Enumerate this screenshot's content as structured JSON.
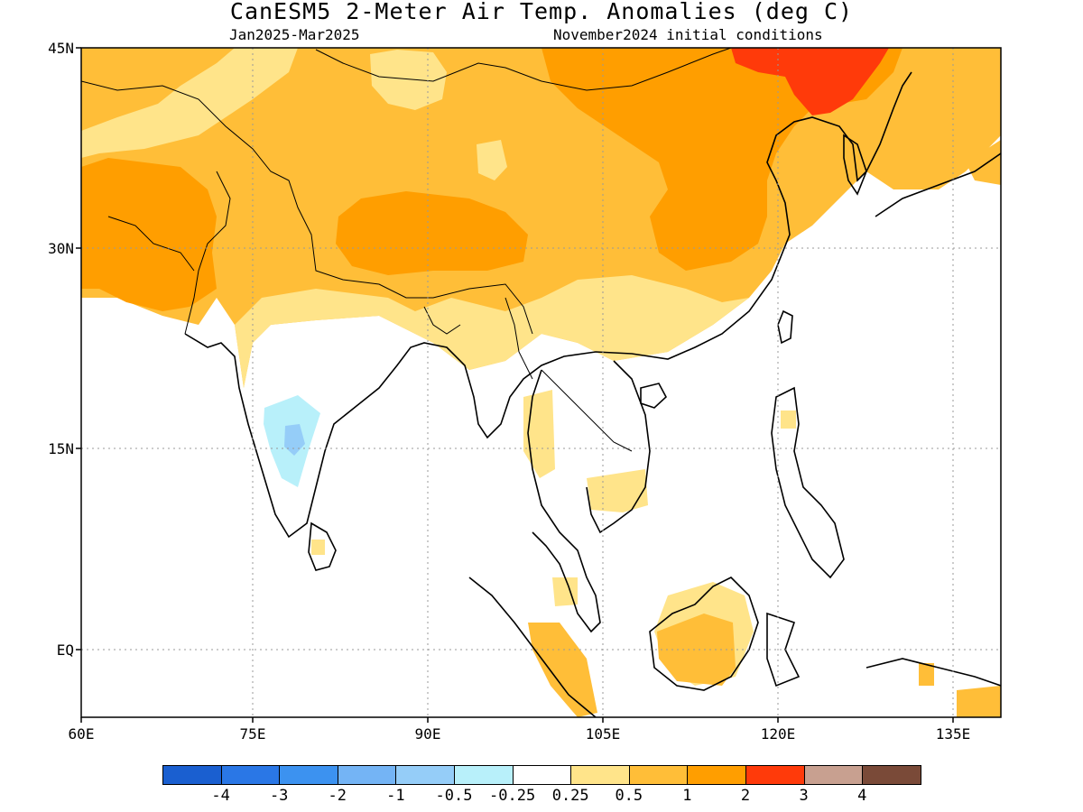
{
  "title": "CanESM5 2-Meter Air Temp. Anomalies (deg C)",
  "subtitle_left": "Jan2025-Mar2025",
  "subtitle_right": "November2024 initial conditions",
  "y_axis": {
    "ticks": [
      "45N",
      "30N",
      "15N",
      "EQ"
    ]
  },
  "x_axis": {
    "ticks": [
      "60E",
      "75E",
      "90E",
      "105E",
      "120E",
      "135E"
    ]
  },
  "colorbar": {
    "colors": [
      "#1a5fd0",
      "#2a77e6",
      "#3c92f0",
      "#74b4f5",
      "#95cdf8",
      "#b8f0fa",
      "#ffffff",
      "#ffe48a",
      "#ffbe38",
      "#ff9e00",
      "#ff3a0a",
      "#c8a090",
      "#7a4a38"
    ],
    "labels": [
      "-4",
      "-3",
      "-2",
      "-1",
      "-0.5",
      "-0.25",
      "0.25",
      "0.5",
      "1",
      "2",
      "3",
      "4"
    ]
  }
}
